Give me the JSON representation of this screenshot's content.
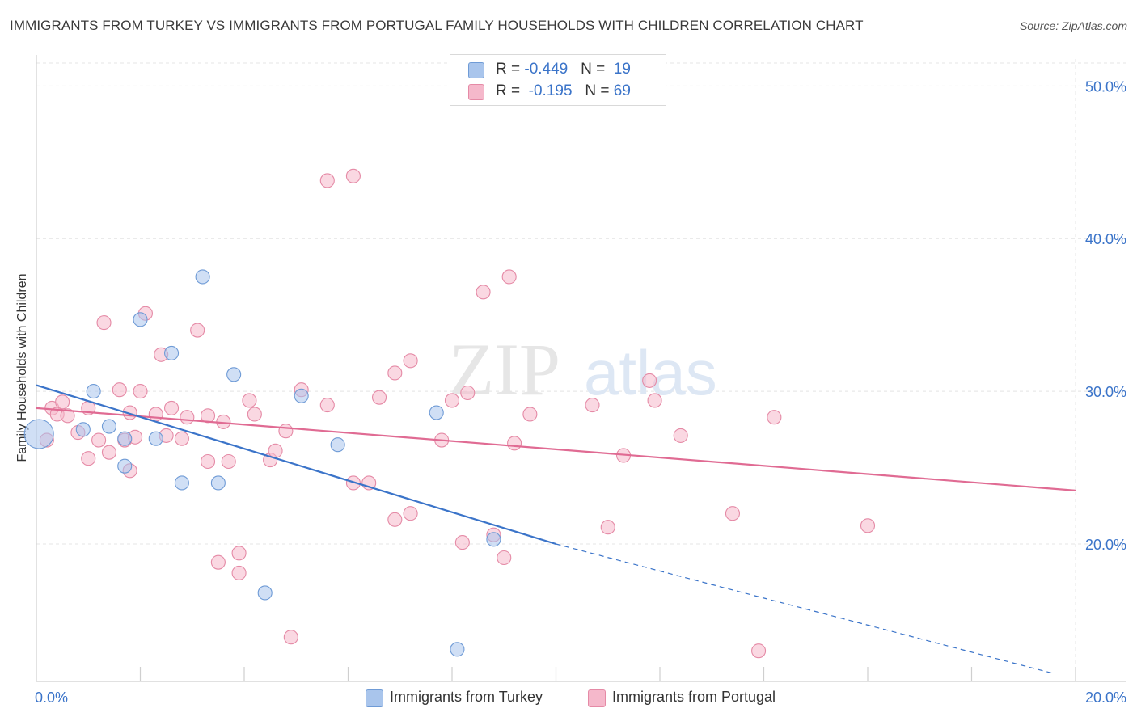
{
  "header": {
    "title": "IMMIGRANTS FROM TURKEY VS IMMIGRANTS FROM PORTUGAL FAMILY HOUSEHOLDS WITH CHILDREN CORRELATION CHART",
    "source": "Source: ZipAtlas.com"
  },
  "watermark": {
    "zip": "ZIP",
    "atlas": "atlas"
  },
  "legend": {
    "rows": [
      {
        "r_label": "R = ",
        "r_value": "-0.449",
        "n_label": "N = ",
        "n_value": "19",
        "color": "#a9c5ec"
      },
      {
        "r_label": "R = ",
        "r_value": "-0.195",
        "n_label": "N = ",
        "n_value": "69",
        "color": "#f5b8cb"
      }
    ]
  },
  "chart_data": {
    "type": "scatter",
    "title": "IMMIGRANTS FROM TURKEY VS IMMIGRANTS FROM PORTUGAL FAMILY HOUSEHOLDS WITH CHILDREN CORRELATION CHART",
    "xlabel": "",
    "ylabel": "Family Households with Children",
    "xlim": [
      0,
      20
    ],
    "ylim": [
      11,
      51.5
    ],
    "x_tick_labels": [
      "0.0%",
      "20.0%"
    ],
    "y_ticks": [
      20,
      30,
      40,
      50
    ],
    "y_tick_labels": [
      "20.0%",
      "30.0%",
      "40.0%",
      "50.0%"
    ],
    "grid": true,
    "legend_position": "top-center",
    "series": [
      {
        "name": "Immigrants from Turkey",
        "color": "#a9c5ec",
        "edge_color": "#6f9bd6",
        "line_color": "#3b74c9",
        "points": [
          [
            0.05,
            27.2
          ],
          [
            0.9,
            27.5
          ],
          [
            1.1,
            30.0
          ],
          [
            1.4,
            27.7
          ],
          [
            1.7,
            26.9
          ],
          [
            1.7,
            25.1
          ],
          [
            2.0,
            34.7
          ],
          [
            2.3,
            26.9
          ],
          [
            2.6,
            32.5
          ],
          [
            2.8,
            24.0
          ],
          [
            3.2,
            37.5
          ],
          [
            3.5,
            24.0
          ],
          [
            3.8,
            31.1
          ],
          [
            4.4,
            16.8
          ],
          [
            5.1,
            29.7
          ],
          [
            5.8,
            26.5
          ],
          [
            7.7,
            28.6
          ],
          [
            8.1,
            13.1
          ],
          [
            8.8,
            20.3
          ]
        ],
        "trend": {
          "x1": 0,
          "y1": 30.4,
          "x2": 10.0,
          "y2": 20.0,
          "dashed_to_x": 19.6,
          "dashed_to_y": 11.5
        }
      },
      {
        "name": "Immigrants from Portugal",
        "color": "#f5b8cb",
        "edge_color": "#e58aa6",
        "line_color": "#e06b93",
        "points": [
          [
            0.3,
            28.9
          ],
          [
            0.4,
            28.5
          ],
          [
            0.5,
            29.3
          ],
          [
            0.6,
            28.4
          ],
          [
            0.8,
            27.3
          ],
          [
            1.0,
            25.6
          ],
          [
            1.0,
            28.9
          ],
          [
            1.2,
            26.8
          ],
          [
            1.3,
            34.5
          ],
          [
            1.4,
            26.0
          ],
          [
            1.6,
            30.1
          ],
          [
            1.7,
            26.8
          ],
          [
            1.8,
            24.8
          ],
          [
            1.9,
            27.0
          ],
          [
            2.0,
            30.0
          ],
          [
            2.1,
            35.1
          ],
          [
            2.3,
            28.5
          ],
          [
            2.4,
            32.4
          ],
          [
            2.5,
            27.1
          ],
          [
            2.6,
            28.9
          ],
          [
            2.8,
            26.9
          ],
          [
            2.9,
            28.3
          ],
          [
            3.1,
            34.0
          ],
          [
            3.3,
            28.4
          ],
          [
            3.3,
            25.4
          ],
          [
            3.5,
            18.8
          ],
          [
            3.6,
            28.0
          ],
          [
            3.7,
            25.4
          ],
          [
            3.9,
            19.4
          ],
          [
            3.9,
            18.1
          ],
          [
            4.1,
            29.4
          ],
          [
            4.2,
            28.5
          ],
          [
            4.5,
            25.5
          ],
          [
            4.6,
            26.1
          ],
          [
            4.8,
            27.4
          ],
          [
            4.9,
            13.9
          ],
          [
            5.1,
            30.1
          ],
          [
            5.6,
            43.8
          ],
          [
            5.6,
            29.1
          ],
          [
            6.1,
            44.1
          ],
          [
            6.1,
            24.0
          ],
          [
            6.4,
            24.0
          ],
          [
            6.6,
            29.6
          ],
          [
            6.9,
            21.6
          ],
          [
            6.9,
            31.2
          ],
          [
            7.2,
            32.0
          ],
          [
            7.2,
            22.0
          ],
          [
            7.8,
            26.8
          ],
          [
            8.0,
            29.4
          ],
          [
            8.2,
            20.1
          ],
          [
            8.3,
            29.9
          ],
          [
            8.6,
            36.5
          ],
          [
            8.8,
            20.6
          ],
          [
            9.0,
            19.1
          ],
          [
            9.1,
            37.5
          ],
          [
            9.2,
            26.6
          ],
          [
            9.5,
            28.5
          ],
          [
            10.7,
            29.1
          ],
          [
            11.0,
            21.1
          ],
          [
            11.3,
            25.8
          ],
          [
            11.8,
            30.7
          ],
          [
            11.9,
            29.4
          ],
          [
            12.4,
            27.1
          ],
          [
            13.4,
            22.0
          ],
          [
            13.9,
            13.0
          ],
          [
            14.2,
            28.3
          ],
          [
            16.0,
            21.2
          ],
          [
            0.2,
            26.8
          ],
          [
            1.8,
            28.6
          ]
        ],
        "trend": {
          "x1": 0,
          "y1": 28.9,
          "x2": 20.0,
          "y2": 23.5
        }
      }
    ]
  }
}
